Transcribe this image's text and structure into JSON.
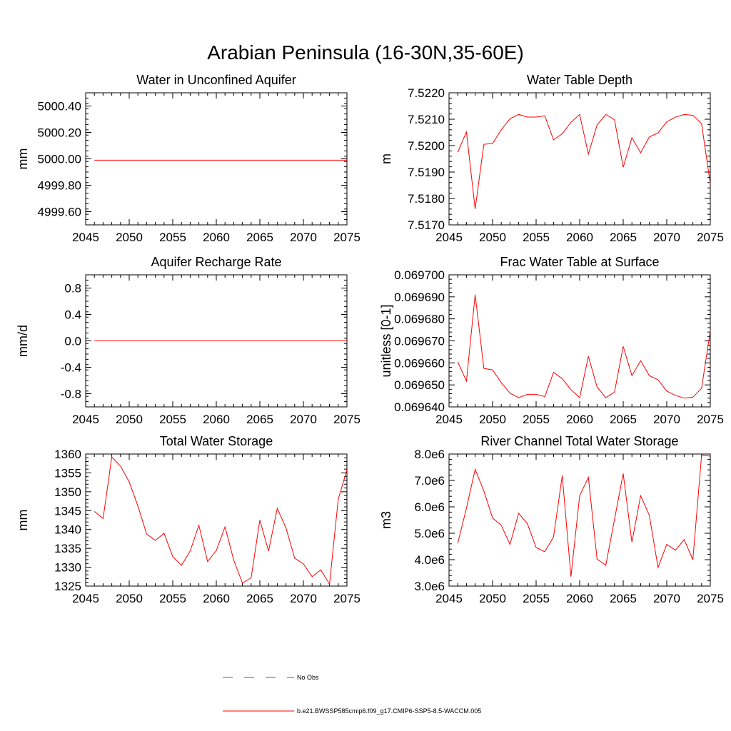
{
  "figure": {
    "title": "Arabian Peninsula (16-30N,35-60E)"
  },
  "legend": {
    "entries": [
      {
        "label": "No Obs",
        "color": "#5555aa",
        "style": "dashed"
      },
      {
        "label": "b.e21.BWSSP585cmip6.f09_g17.CMIP6-SSP5-8.5-WACCM.005",
        "color": "#ff0000",
        "style": "solid"
      }
    ]
  },
  "chart_data": [
    {
      "type": "line",
      "title": "Water in Unconfined Aquifer",
      "xlabel": "",
      "ylabel": "mm",
      "xlim": [
        2045,
        2075
      ],
      "ylim": [
        4999.5,
        5000.5
      ],
      "xticks": [
        2045,
        2050,
        2055,
        2060,
        2065,
        2070,
        2075
      ],
      "xtick_labels": [
        "2045",
        "2050",
        "2055",
        "2060",
        "2065",
        "2070",
        "2075"
      ],
      "yticks": [
        4999.6,
        4999.8,
        5000.0,
        5000.2,
        5000.4
      ],
      "ytick_labels": [
        "4999.60",
        "4999.80",
        "5000.00",
        "5000.20",
        "5000.40"
      ],
      "series": [
        {
          "color": "#ff0000",
          "x": [
            2046,
            2075
          ],
          "y": [
            4999.99,
            4999.99
          ]
        }
      ]
    },
    {
      "type": "line",
      "title": "Water Table Depth",
      "xlabel": "",
      "ylabel": "m",
      "xlim": [
        2045,
        2075
      ],
      "ylim": [
        7.517,
        7.522
      ],
      "xticks": [
        2045,
        2050,
        2055,
        2060,
        2065,
        2070,
        2075
      ],
      "xtick_labels": [
        "2045",
        "2050",
        "2055",
        "2060",
        "2065",
        "2070",
        "2075"
      ],
      "yticks": [
        7.517,
        7.518,
        7.519,
        7.52,
        7.521,
        7.522
      ],
      "ytick_labels": [
        "7.5170",
        "7.5180",
        "7.5190",
        "7.5200",
        "7.5210",
        "7.5220"
      ],
      "series": [
        {
          "color": "#ff0000",
          "x": [
            2046,
            2047,
            2048,
            2049,
            2050,
            2051,
            2052,
            2053,
            2054,
            2055,
            2056,
            2057,
            2058,
            2059,
            2060,
            2061,
            2062,
            2063,
            2064,
            2065,
            2066,
            2067,
            2068,
            2069,
            2070,
            2071,
            2072,
            2073,
            2074,
            2075
          ],
          "y": [
            7.51975,
            7.52052,
            7.5176,
            7.52005,
            7.52008,
            7.5206,
            7.52102,
            7.52118,
            7.52108,
            7.52108,
            7.52113,
            7.52022,
            7.52045,
            7.52088,
            7.52118,
            7.51968,
            7.52078,
            7.52118,
            7.52098,
            7.51918,
            7.5203,
            7.51973,
            7.52033,
            7.52048,
            7.5209,
            7.52108,
            7.52118,
            7.52115,
            7.52083,
            7.51855
          ]
        }
      ]
    },
    {
      "type": "line",
      "title": "Aquifer Recharge Rate",
      "xlabel": "",
      "ylabel": "mm/d",
      "xlim": [
        2045,
        2075
      ],
      "ylim": [
        -1.0,
        1.0
      ],
      "xticks": [
        2045,
        2050,
        2055,
        2060,
        2065,
        2070,
        2075
      ],
      "xtick_labels": [
        "2045",
        "2050",
        "2055",
        "2060",
        "2065",
        "2070",
        "2075"
      ],
      "yticks": [
        -0.8,
        -0.4,
        0.0,
        0.4,
        0.8
      ],
      "ytick_labels": [
        "-0.8",
        "-0.4",
        "0.0",
        "0.4",
        "0.8"
      ],
      "series": [
        {
          "color": "#ff0000",
          "x": [
            2046,
            2075
          ],
          "y": [
            0.0,
            0.0
          ]
        }
      ]
    },
    {
      "type": "line",
      "title": "Frac Water Table at Surface",
      "xlabel": "",
      "ylabel": "unitless [0-1]",
      "xlim": [
        2045,
        2075
      ],
      "ylim": [
        0.06964,
        0.0697
      ],
      "xticks": [
        2045,
        2050,
        2055,
        2060,
        2065,
        2070,
        2075
      ],
      "xtick_labels": [
        "2045",
        "2050",
        "2055",
        "2060",
        "2065",
        "2070",
        "2075"
      ],
      "yticks": [
        0.06964,
        0.06965,
        0.06966,
        0.06967,
        0.06968,
        0.06969,
        0.0697
      ],
      "ytick_labels": [
        "0.069640",
        "0.069650",
        "0.069660",
        "0.069670",
        "0.069680",
        "0.069690",
        "0.069700"
      ],
      "series": [
        {
          "color": "#ff0000",
          "x": [
            2046,
            2047,
            2048,
            2049,
            2050,
            2051,
            2052,
            2053,
            2054,
            2055,
            2056,
            2057,
            2058,
            2059,
            2060,
            2061,
            2062,
            2063,
            2064,
            2065,
            2066,
            2067,
            2068,
            2069,
            2070,
            2071,
            2072,
            2073,
            2074,
            2075
          ],
          "y": [
            0.0696605,
            0.0696517,
            0.069691,
            0.0696575,
            0.0696568,
            0.069651,
            0.0696462,
            0.0696442,
            0.0696457,
            0.0696457,
            0.0696447,
            0.0696557,
            0.0696528,
            0.0696478,
            0.0696442,
            0.069663,
            0.069649,
            0.0696442,
            0.0696467,
            0.0696675,
            0.0696542,
            0.069661,
            0.0696542,
            0.0696523,
            0.0696472,
            0.0696452,
            0.069644,
            0.0696444,
            0.0696485,
            0.0696745
          ]
        }
      ]
    },
    {
      "type": "line",
      "title": "Total Water Storage",
      "xlabel": "",
      "ylabel": "mm",
      "xlim": [
        2045,
        2075
      ],
      "ylim": [
        1325,
        1360
      ],
      "xticks": [
        2045,
        2050,
        2055,
        2060,
        2065,
        2070,
        2075
      ],
      "xtick_labels": [
        "2045",
        "2050",
        "2055",
        "2060",
        "2065",
        "2070",
        "2075"
      ],
      "yticks": [
        1325,
        1330,
        1335,
        1340,
        1345,
        1350,
        1355,
        1360
      ],
      "ytick_labels": [
        "1325",
        "1330",
        "1335",
        "1340",
        "1345",
        "1350",
        "1355",
        "1360"
      ],
      "series": [
        {
          "color": "#ff0000",
          "x": [
            2046,
            2047,
            2048,
            2049,
            2050,
            2051,
            2052,
            2053,
            2054,
            2055,
            2056,
            2057,
            2058,
            2059,
            2060,
            2061,
            2062,
            2063,
            2064,
            2065,
            2066,
            2067,
            2068,
            2069,
            2070,
            2071,
            2072,
            2073,
            2074,
            2075
          ],
          "y": [
            1344.8,
            1342.9,
            1359.2,
            1356.8,
            1352.6,
            1346.2,
            1338.8,
            1337.1,
            1339.0,
            1332.8,
            1330.5,
            1334.3,
            1341.1,
            1331.5,
            1334.4,
            1340.7,
            1331.9,
            1325.8,
            1327.2,
            1342.5,
            1334.3,
            1345.6,
            1340.4,
            1332.4,
            1330.9,
            1327.5,
            1329.3,
            1325.5,
            1348.0,
            1355.8
          ]
        }
      ]
    },
    {
      "type": "line",
      "title": "River Channel Total Water Storage",
      "xlabel": "",
      "ylabel": "m3",
      "xlim": [
        2045,
        2075
      ],
      "ylim": [
        3000000.0,
        8000000.0
      ],
      "xticks": [
        2045,
        2050,
        2055,
        2060,
        2065,
        2070,
        2075
      ],
      "xtick_labels": [
        "2045",
        "2050",
        "2055",
        "2060",
        "2065",
        "2070",
        "2075"
      ],
      "yticks": [
        3000000.0,
        4000000.0,
        5000000.0,
        6000000.0,
        7000000.0,
        8000000.0
      ],
      "ytick_labels": [
        "3.0e6",
        "4.0e6",
        "5.0e6",
        "6.0e6",
        "7.0e6",
        "8.0e6"
      ],
      "series": [
        {
          "color": "#ff0000",
          "x": [
            2046,
            2047,
            2048,
            2049,
            2050,
            2051,
            2052,
            2053,
            2054,
            2055,
            2056,
            2057,
            2058,
            2059,
            2060,
            2061,
            2062,
            2063,
            2064,
            2065,
            2066,
            2067,
            2068,
            2069,
            2070,
            2071,
            2072,
            2073,
            2074,
            2075
          ],
          "y": [
            4620000.0,
            5950000.0,
            7420000.0,
            6600000.0,
            5580000.0,
            5300000.0,
            4580000.0,
            5760000.0,
            5360000.0,
            4460000.0,
            4300000.0,
            4860000.0,
            7180000.0,
            3360000.0,
            6420000.0,
            7120000.0,
            4020000.0,
            3790000.0,
            5520000.0,
            7260000.0,
            4660000.0,
            6420000.0,
            5680000.0,
            3700000.0,
            4580000.0,
            4360000.0,
            4760000.0,
            4000000.0,
            7960000.0,
            7920000.0
          ]
        }
      ]
    }
  ]
}
